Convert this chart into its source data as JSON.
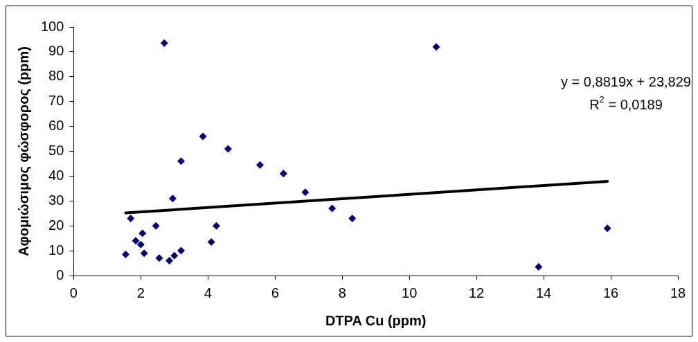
{
  "chart_data": {
    "type": "scatter",
    "xlabel": "DTPA Cu (ppm)",
    "ylabel": "Αφομιώσιμος φώσφορος (ppm)",
    "xlim": [
      0,
      18
    ],
    "xticks": [
      0,
      2,
      4,
      6,
      8,
      10,
      12,
      14,
      16,
      18
    ],
    "ylim": [
      0,
      100
    ],
    "yticks": [
      0,
      10,
      20,
      30,
      40,
      50,
      60,
      70,
      80,
      90,
      100
    ],
    "grid": false,
    "legend": false,
    "marker": "diamond",
    "series": [
      {
        "color": "#000080",
        "x": [
          1.55,
          1.7,
          1.85,
          2.05,
          2.0,
          2.1,
          2.45,
          2.55,
          2.7,
          2.85,
          2.95,
          3.0,
          3.2,
          3.2,
          3.85,
          4.1,
          4.25,
          4.6,
          5.55,
          6.25,
          6.9,
          7.7,
          8.3,
          10.8,
          13.85,
          15.9
        ],
        "values": [
          8.5,
          23,
          14,
          17,
          12.5,
          9,
          20,
          7,
          93.5,
          6,
          31,
          8,
          10,
          46,
          56,
          13.5,
          20,
          51,
          44.5,
          41,
          33.5,
          27,
          23,
          92,
          3.5,
          19
        ]
      },
      {
        "type": "line",
        "color": "#000000",
        "line_style": "solid",
        "marker": "none",
        "x": [
          1.55,
          15.9
        ],
        "values": [
          25.2,
          37.9
        ]
      }
    ],
    "annotations": [
      "y = 0,8819x + 23,829",
      "R$^{2}$ = 0,0189"
    ]
  }
}
